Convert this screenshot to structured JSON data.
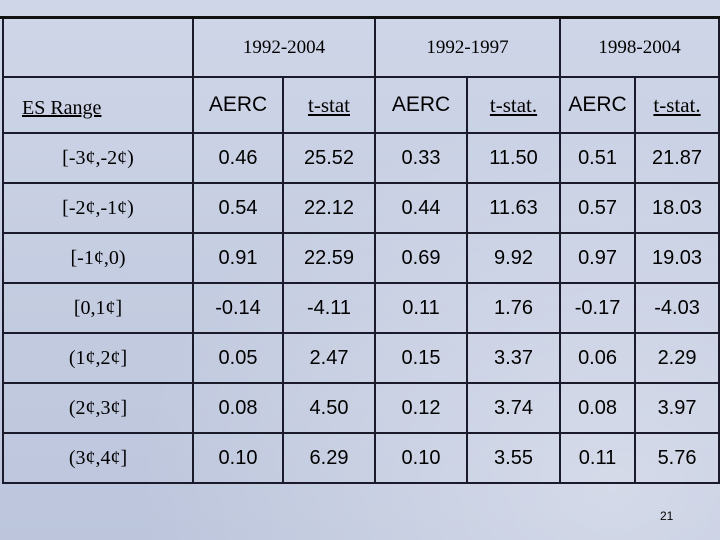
{
  "table": {
    "periods": [
      "1992-2004",
      "1992-1997",
      "1998-2004"
    ],
    "row_header_label": "ES Range",
    "col_headers": [
      "AERC",
      "t-stat",
      "AERC",
      "t-stat.",
      "AERC",
      "t-stat."
    ],
    "rows": [
      {
        "range": "[-3¢,-2¢)",
        "values": [
          "0.46",
          "25.52",
          "0.33",
          "11.50",
          "0.51",
          "21.87"
        ]
      },
      {
        "range": "[-2¢,-1¢)",
        "values": [
          "0.54",
          "22.12",
          "0.44",
          "11.63",
          "0.57",
          "18.03"
        ]
      },
      {
        "range": "[-1¢,0)",
        "values": [
          "0.91",
          "22.59",
          "0.69",
          "9.92",
          "0.97",
          "19.03"
        ]
      },
      {
        "range": "[0,1¢]",
        "values": [
          "-0.14",
          "-4.11",
          "0.11",
          "1.76",
          "-0.17",
          "-4.03"
        ]
      },
      {
        "range": "(1¢,2¢]",
        "values": [
          "0.05",
          "2.47",
          "0.15",
          "3.37",
          "0.06",
          "2.29"
        ]
      },
      {
        "range": "(2¢,3¢]",
        "values": [
          "0.08",
          "4.50",
          "0.12",
          "3.74",
          "0.08",
          "3.97"
        ]
      },
      {
        "range": "(3¢,4¢]",
        "values": [
          "0.10",
          "6.29",
          "0.10",
          "3.55",
          "0.11",
          "5.76"
        ]
      }
    ]
  },
  "page_number": "21"
}
